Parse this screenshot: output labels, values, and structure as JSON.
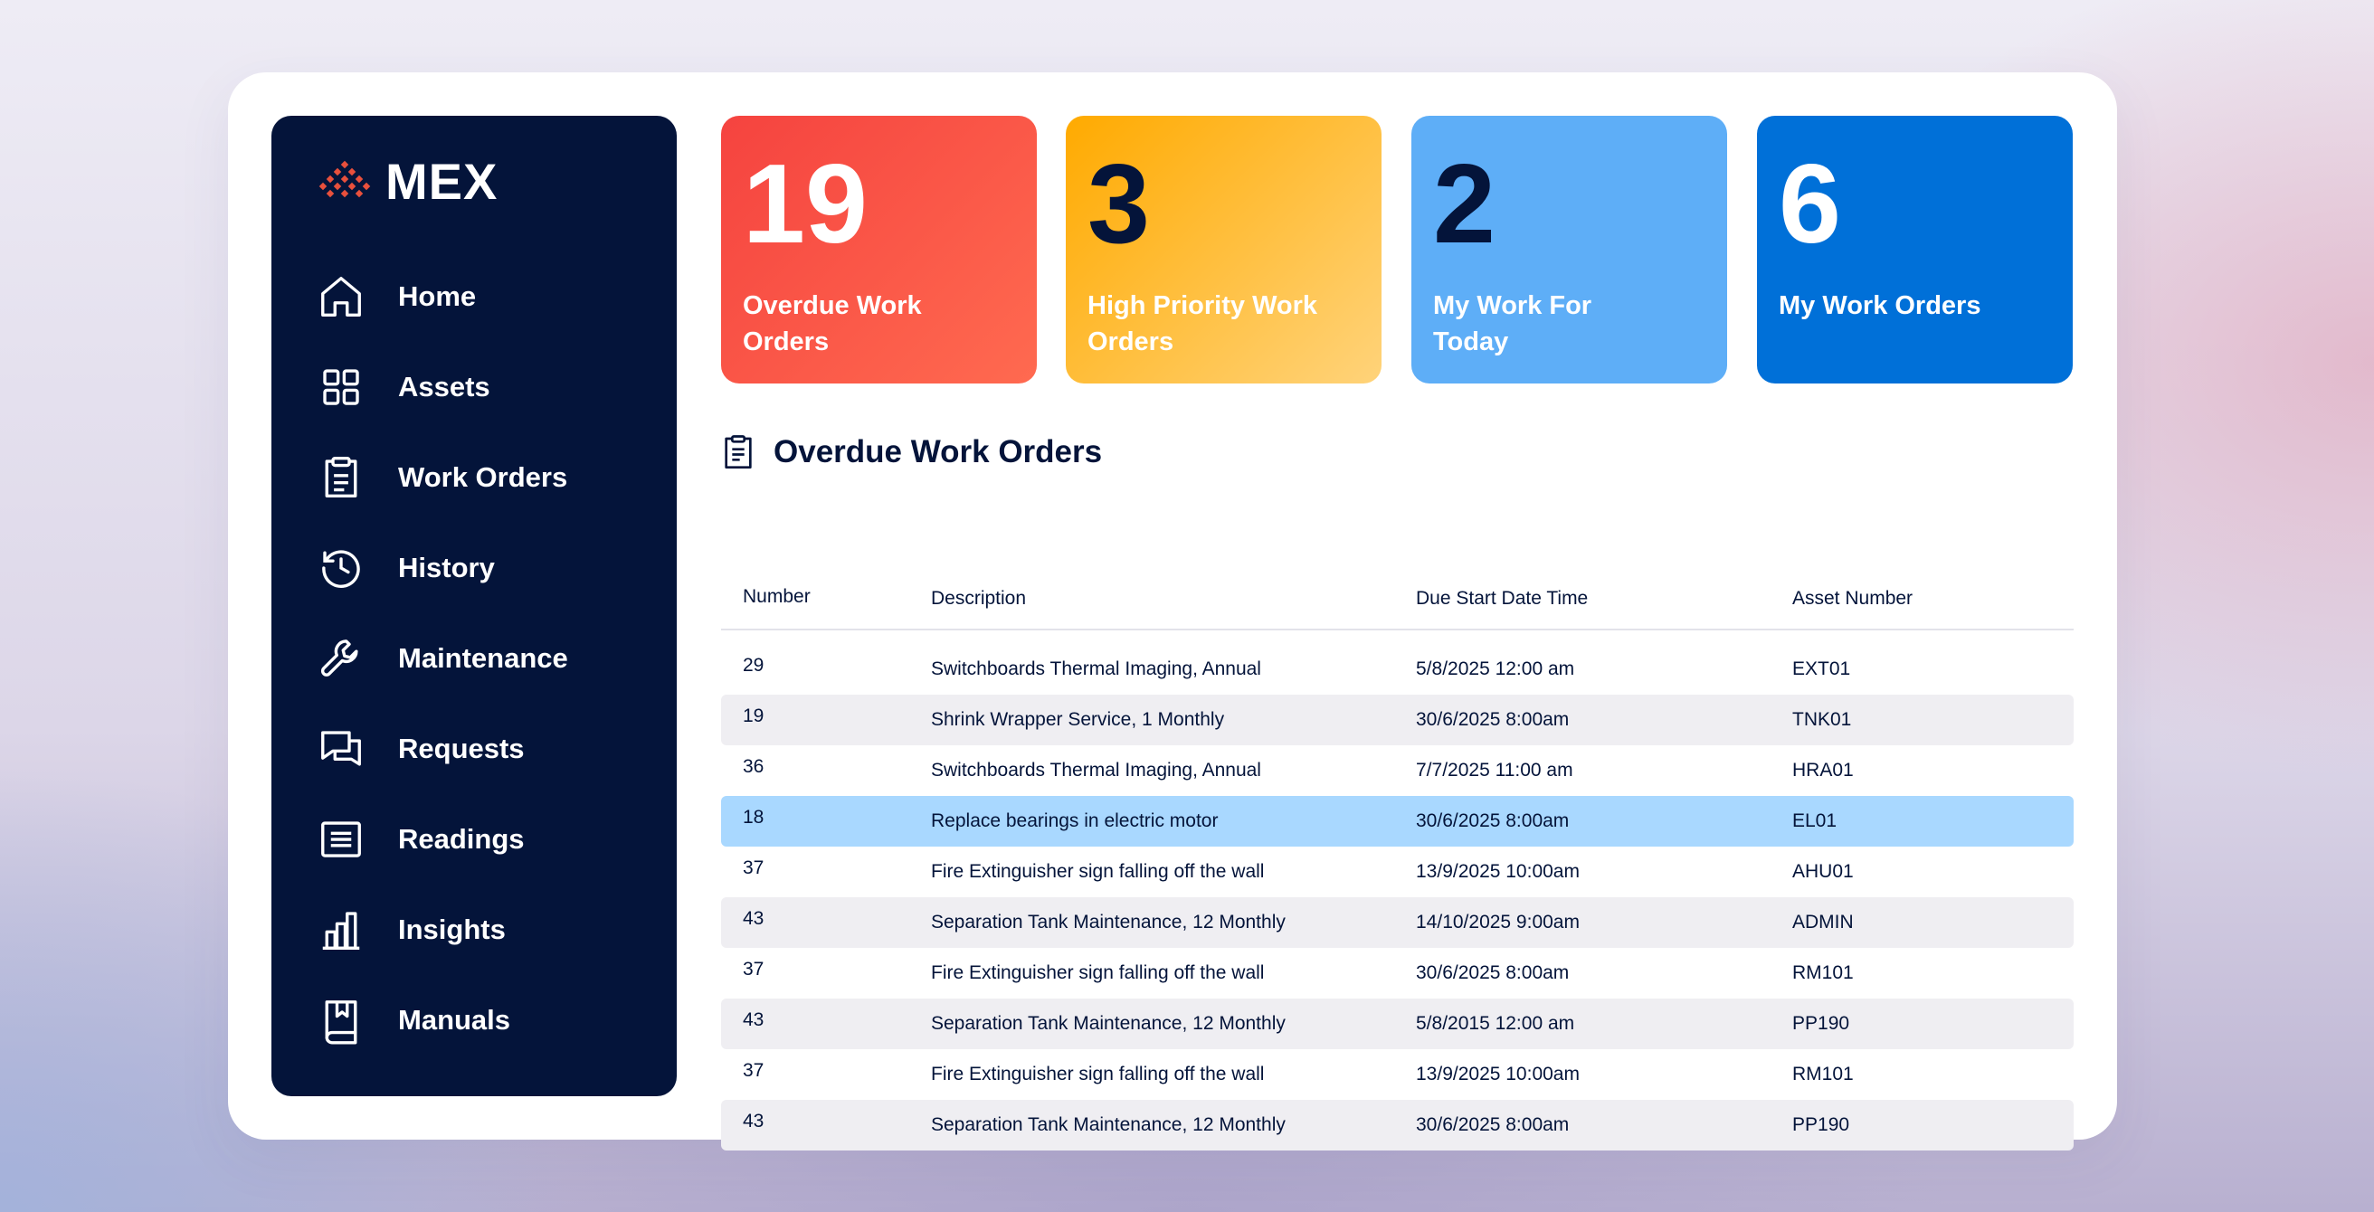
{
  "app": {
    "logo_text": "MEX"
  },
  "sidebar": {
    "items": [
      {
        "label": "Home",
        "icon": "home-icon"
      },
      {
        "label": "Assets",
        "icon": "grid-icon"
      },
      {
        "label": "Work Orders",
        "icon": "clipboard-icon"
      },
      {
        "label": "History",
        "icon": "history-icon"
      },
      {
        "label": "Maintenance",
        "icon": "wrench-icon"
      },
      {
        "label": "Requests",
        "icon": "chat-icon"
      },
      {
        "label": "Readings",
        "icon": "list-icon"
      },
      {
        "label": "Insights",
        "icon": "bar-chart-icon"
      },
      {
        "label": "Manuals",
        "icon": "book-icon"
      }
    ]
  },
  "stats": [
    {
      "value": "19",
      "label": "Overdue Work Orders",
      "color": "#f5433f"
    },
    {
      "value": "3",
      "label": "High Priority Work Orders",
      "color": "#ffaa00"
    },
    {
      "value": "2",
      "label": "My Work For Today",
      "color": "#5eaef7"
    },
    {
      "value": "6",
      "label": "My Work Orders",
      "color": "#0070d8"
    }
  ],
  "overdue": {
    "title": "Overdue Work Orders",
    "columns": [
      "Number",
      "Description",
      "Due Start Date Time",
      "Asset Number"
    ],
    "rows": [
      {
        "number": "29",
        "description": "Switchboards Thermal Imaging, Annual",
        "due": "5/8/2025 12:00 am",
        "asset": "EXT01"
      },
      {
        "number": "19",
        "description": "Shrink Wrapper Service, 1 Monthly",
        "due": "30/6/2025 8:00am",
        "asset": "TNK01"
      },
      {
        "number": "36",
        "description": "Switchboards Thermal Imaging, Annual",
        "due": "7/7/2025 11:00 am",
        "asset": "HRA01"
      },
      {
        "number": "18",
        "description": "Replace bearings in electric motor",
        "due": "30/6/2025 8:00am",
        "asset": "EL01"
      },
      {
        "number": "37",
        "description": "Fire Extinguisher sign falling off the wall",
        "due": "13/9/2025 10:00am",
        "asset": "AHU01"
      },
      {
        "number": "43",
        "description": "Separation Tank Maintenance, 12 Monthly",
        "due": "14/10/2025 9:00am",
        "asset": "ADMIN"
      },
      {
        "number": "37",
        "description": "Fire Extinguisher sign falling off the wall",
        "due": "30/6/2025 8:00am",
        "asset": "RM101"
      },
      {
        "number": "43",
        "description": "Separation Tank Maintenance, 12 Monthly",
        "due": "5/8/2015 12:00 am",
        "asset": "PP190"
      },
      {
        "number": "37",
        "description": "Fire Extinguisher sign falling off the wall",
        "due": "13/9/2025 10:00am",
        "asset": "RM101"
      },
      {
        "number": "43",
        "description": "Separation Tank Maintenance, 12 Monthly",
        "due": "30/6/2025 8:00am",
        "asset": "PP190"
      }
    ],
    "selected_row": 3
  }
}
